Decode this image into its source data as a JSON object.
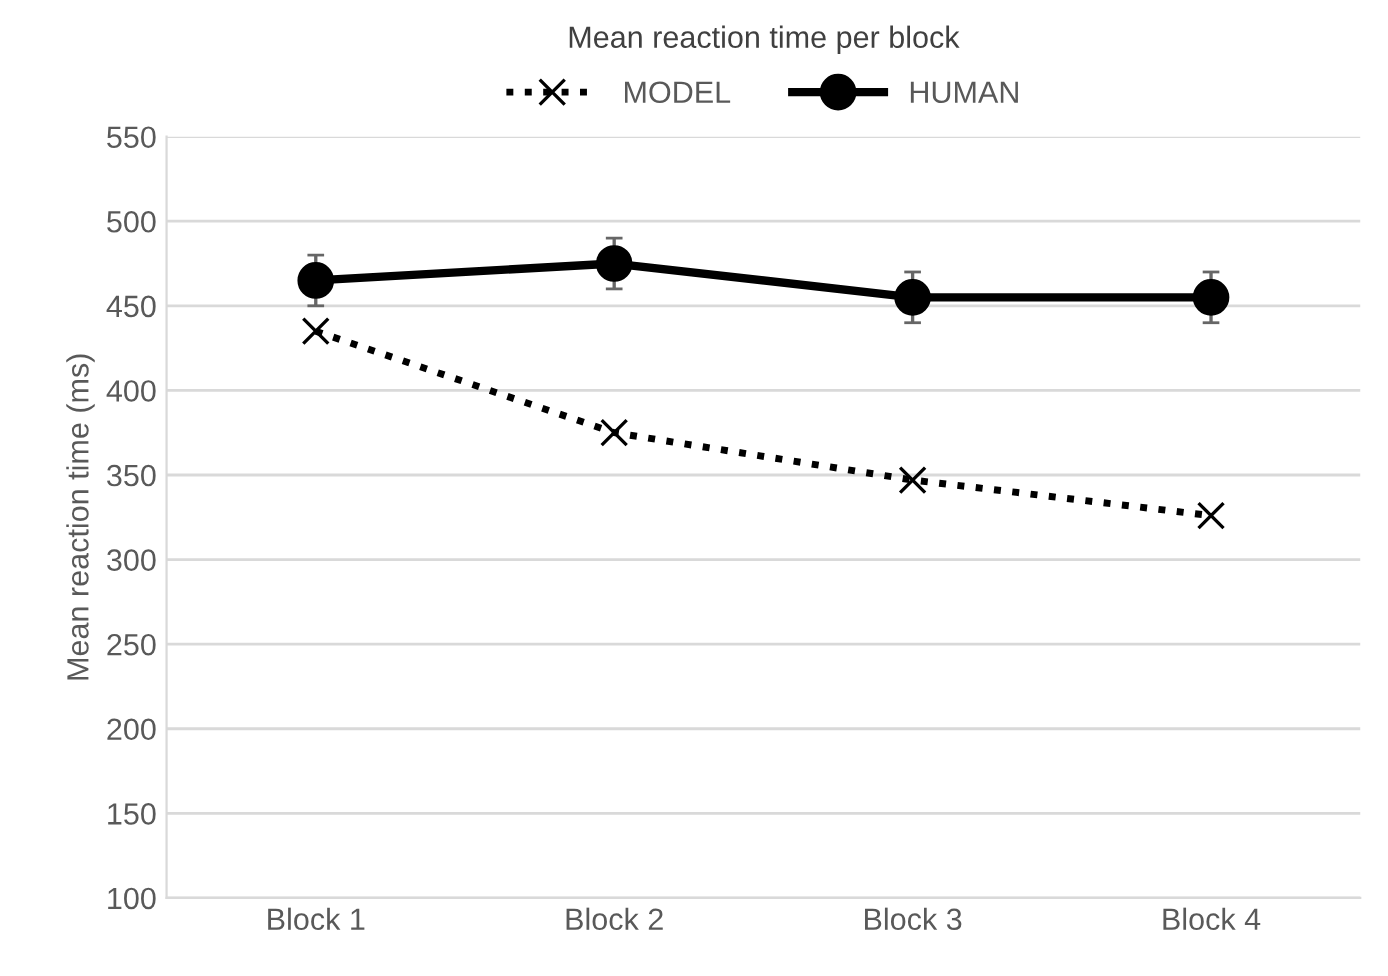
{
  "chart_data": {
    "type": "line",
    "title": "Mean reaction time per block",
    "ylabel": "Mean reaction time (ms)",
    "categories": [
      "Block 1",
      "Block 2",
      "Block 3",
      "Block 4"
    ],
    "series": [
      {
        "name": "MODEL",
        "color": "#000000",
        "values": [
          435,
          375,
          347,
          326
        ],
        "marker": "cross",
        "line_style": "dotted"
      },
      {
        "name": "HUMAN",
        "color": "#000000",
        "values": [
          465,
          475,
          455,
          455
        ],
        "errors": [
          15,
          15,
          15,
          15
        ],
        "marker": "circle",
        "line_style": "solid"
      }
    ],
    "ylim": [
      100,
      550
    ],
    "yticks": [
      100,
      150,
      200,
      250,
      300,
      350,
      400,
      450,
      500,
      550
    ],
    "grid": "y",
    "legend": "top"
  }
}
